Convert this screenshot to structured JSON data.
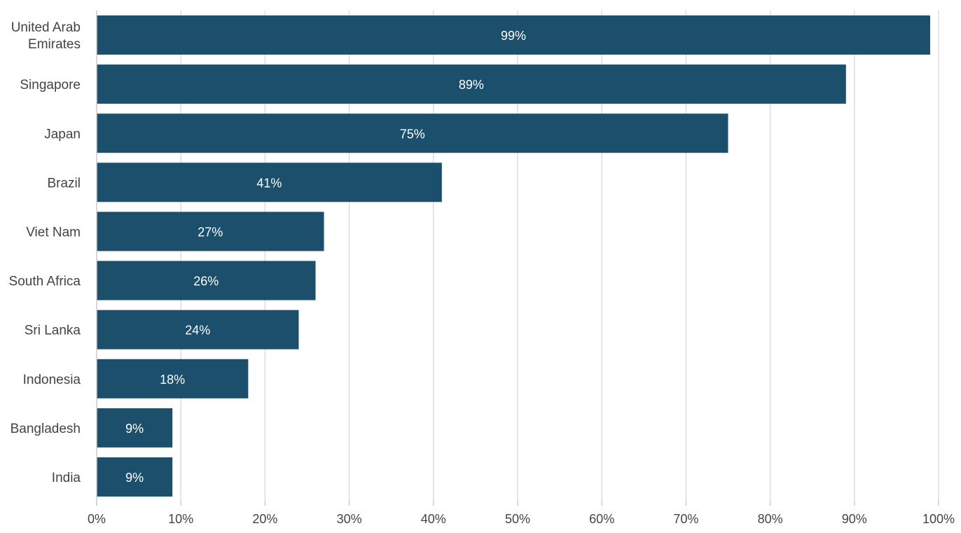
{
  "chart_data": {
    "type": "bar",
    "orientation": "horizontal",
    "categories": [
      "United Arab Emirates",
      "Singapore",
      "Japan",
      "Brazil",
      "Viet Nam",
      "South Africa",
      "Sri Lanka",
      "Indonesia",
      "Bangladesh",
      "India"
    ],
    "category_label_lines": [
      [
        "United Arab",
        "Emirates"
      ],
      [
        "Singapore"
      ],
      [
        "Japan"
      ],
      [
        "Brazil"
      ],
      [
        "Viet Nam"
      ],
      [
        "South Africa"
      ],
      [
        "Sri Lanka"
      ],
      [
        "Indonesia"
      ],
      [
        "Bangladesh"
      ],
      [
        "India"
      ]
    ],
    "values": [
      99,
      89,
      75,
      41,
      27,
      26,
      24,
      18,
      9,
      9
    ],
    "data_labels": [
      "99%",
      "89%",
      "75%",
      "41%",
      "27%",
      "26%",
      "24%",
      "18%",
      "9%",
      "9%"
    ],
    "x_ticks": [
      0,
      10,
      20,
      30,
      40,
      50,
      60,
      70,
      80,
      90,
      100
    ],
    "x_tick_labels": [
      "0%",
      "10%",
      "20%",
      "30%",
      "40%",
      "50%",
      "60%",
      "70%",
      "80%",
      "90%",
      "100%"
    ],
    "xlim": [
      0,
      100
    ],
    "title": "",
    "xlabel": "",
    "ylabel": "",
    "grid": "vertical",
    "legend": "none",
    "colors": {
      "bar": "#1b4f6b",
      "grid": "#dddddd",
      "axis": "#cccccc",
      "label_text": "#444444",
      "bar_text": "#ffffff"
    }
  }
}
